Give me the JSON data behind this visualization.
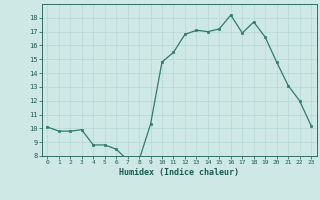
{
  "x": [
    0,
    1,
    2,
    3,
    4,
    5,
    6,
    7,
    8,
    9,
    10,
    11,
    12,
    13,
    14,
    15,
    16,
    17,
    18,
    19,
    20,
    21,
    22,
    23
  ],
  "y": [
    10.1,
    9.8,
    9.8,
    9.9,
    8.8,
    8.8,
    8.5,
    7.7,
    7.7,
    10.3,
    14.8,
    15.5,
    16.8,
    17.1,
    17.0,
    17.2,
    18.2,
    16.9,
    17.7,
    16.6,
    14.8,
    13.1,
    12.0,
    10.2
  ],
  "xlabel": "Humidex (Indice chaleur)",
  "ylim": [
    8,
    19
  ],
  "xlim": [
    -0.5,
    23.5
  ],
  "yticks": [
    8,
    9,
    10,
    11,
    12,
    13,
    14,
    15,
    16,
    17,
    18
  ],
  "xticks": [
    0,
    1,
    2,
    3,
    4,
    5,
    6,
    7,
    8,
    9,
    10,
    11,
    12,
    13,
    14,
    15,
    16,
    17,
    18,
    19,
    20,
    21,
    22,
    23
  ],
  "line_color": "#2e7d6e",
  "marker_color": "#2e7d6e",
  "bg_color": "#cde8e5",
  "grid_color": "#b8d8d4",
  "text_color": "#1a5c52"
}
